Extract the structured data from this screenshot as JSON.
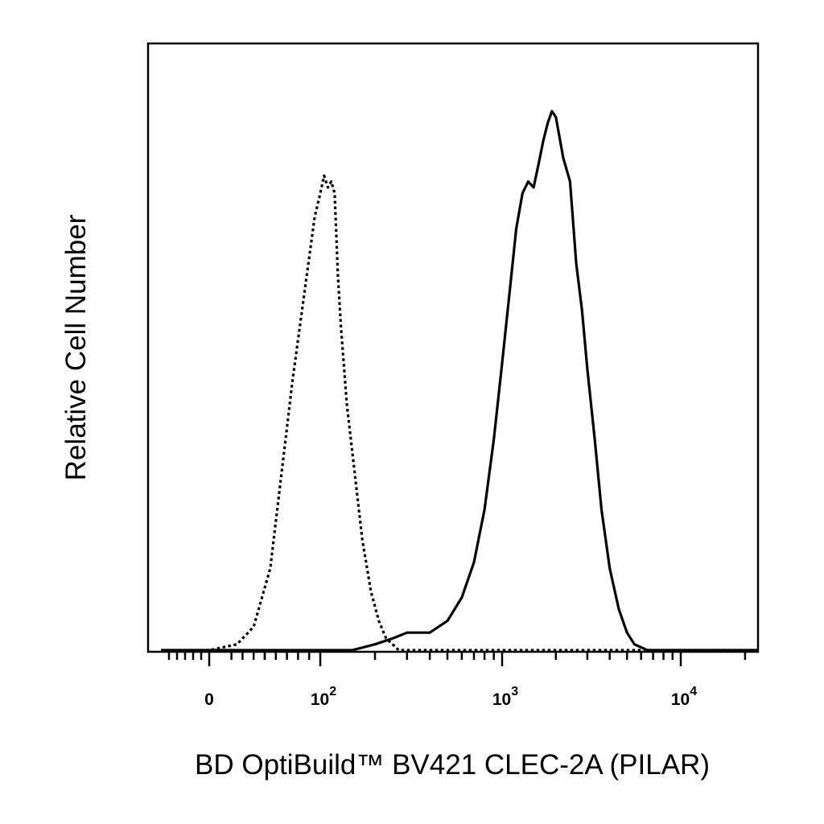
{
  "chart_data": {
    "type": "line",
    "title": "",
    "xlabel": "BD OptiBuild™ BV421 CLEC-2A (PILAR)",
    "ylabel": "Relative Cell Number",
    "x_scale": "biexponential",
    "xlim": [
      -300,
      23000
    ],
    "ylim": [
      0,
      100
    ],
    "grid": false,
    "legend": "none",
    "x_ticks": [
      {
        "value": 0,
        "label": "0"
      },
      {
        "value": 100,
        "base": "10",
        "exp": "2"
      },
      {
        "value": 1000,
        "base": "10",
        "exp": "3"
      },
      {
        "value": 10000,
        "base": "10",
        "exp": "4"
      }
    ],
    "series": [
      {
        "style": "dotted",
        "color": "#000000",
        "x": [
          -300,
          -150,
          0,
          25,
          40,
          55,
          65,
          75,
          85,
          95,
          100,
          105,
          110,
          115,
          120,
          125,
          130,
          140,
          155,
          170,
          190,
          210,
          230,
          250,
          270,
          300,
          500,
          1000,
          2000,
          5000,
          10000,
          23000
        ],
        "y": [
          0,
          0,
          0,
          1,
          4,
          14,
          30,
          46,
          60,
          74,
          78,
          81,
          79,
          80,
          78,
          64,
          55,
          42,
          30,
          19,
          10,
          5,
          2,
          1,
          0,
          0,
          0,
          0,
          0,
          0,
          0,
          0
        ]
      },
      {
        "style": "solid",
        "color": "#000000",
        "x": [
          -300,
          0,
          100,
          150,
          200,
          250,
          300,
          400,
          500,
          600,
          700,
          800,
          900,
          1000,
          1100,
          1200,
          1300,
          1400,
          1500,
          1600,
          1700,
          1800,
          1900,
          2000,
          2200,
          2400,
          2600,
          2800,
          3000,
          3300,
          3600,
          4000,
          4500,
          5000,
          5500,
          6000,
          6500,
          7000,
          8000,
          10000,
          23000
        ],
        "y": [
          0,
          0,
          0,
          0,
          1,
          2,
          3,
          3,
          5,
          9,
          15,
          24,
          36,
          49,
          61,
          72,
          78,
          80,
          79,
          83,
          87,
          90,
          92,
          91,
          84,
          80,
          66,
          58,
          48,
          36,
          24,
          14,
          7,
          3,
          1,
          0.5,
          0,
          0,
          0,
          0,
          0
        ]
      }
    ]
  }
}
